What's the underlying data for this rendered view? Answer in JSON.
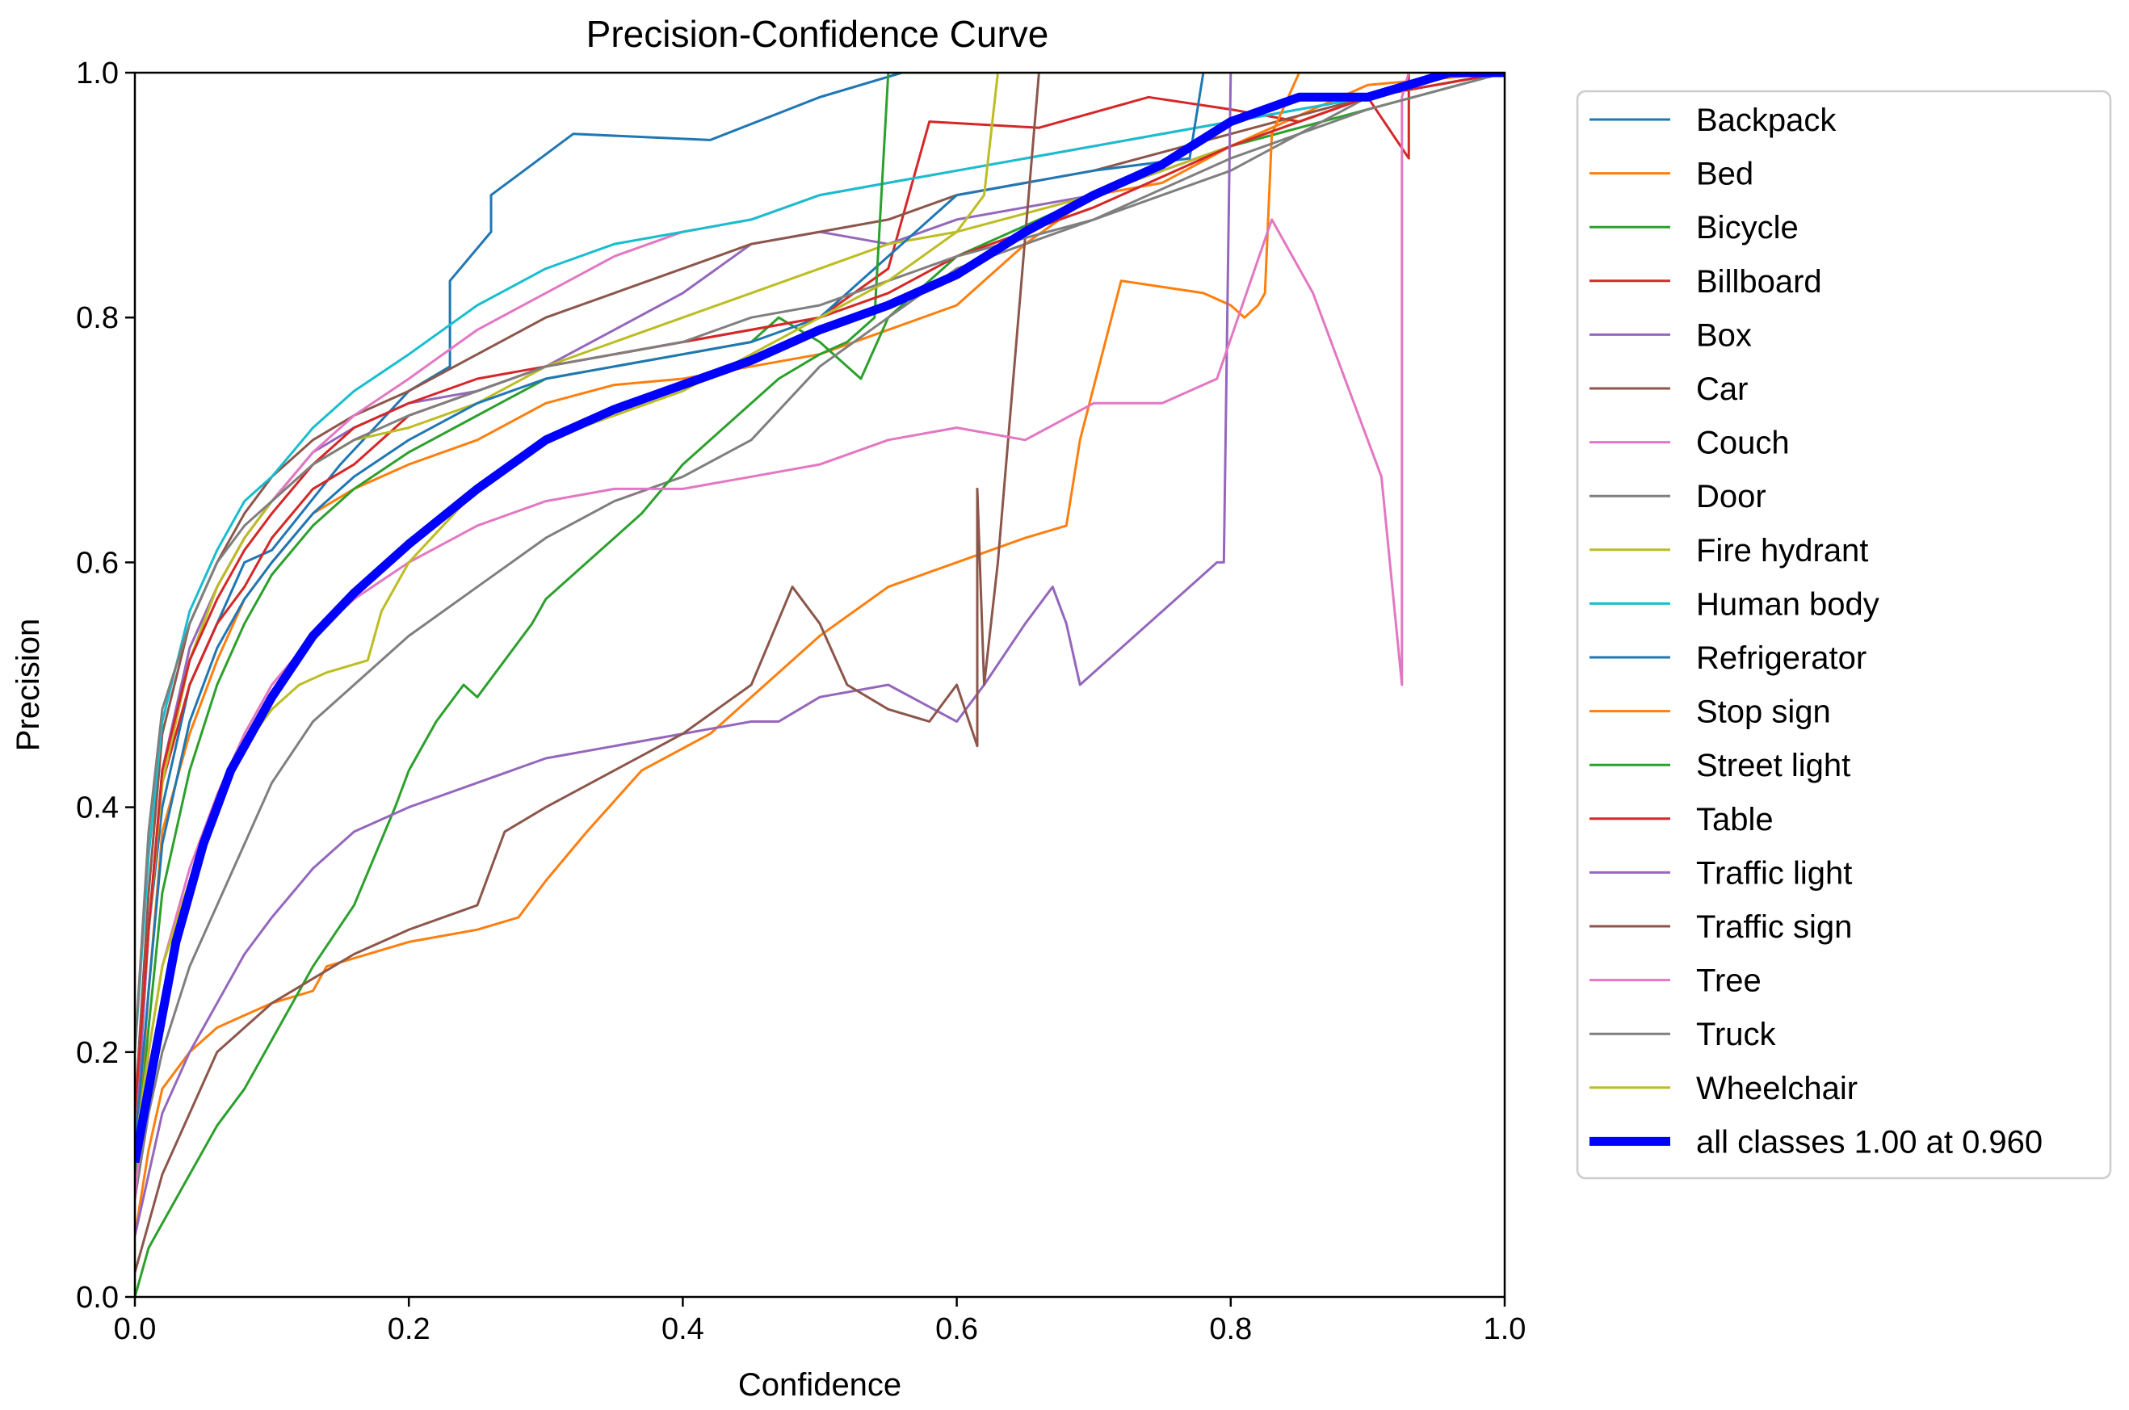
{
  "chart_data": {
    "type": "line",
    "title": "Precision-Confidence Curve",
    "xlabel": "Confidence",
    "ylabel": "Precision",
    "xlim": [
      0.0,
      1.0
    ],
    "ylim": [
      0.0,
      1.0
    ],
    "xticks": [
      "0.0",
      "0.2",
      "0.4",
      "0.6",
      "0.8",
      "1.0"
    ],
    "yticks": [
      "0.0",
      "0.2",
      "0.4",
      "0.6",
      "0.8",
      "1.0"
    ],
    "grid": false,
    "legend_position": "outside-right",
    "series": [
      {
        "name": "Backpack",
        "color": "#1f77b4",
        "x": [
          0,
          0.01,
          0.02,
          0.04,
          0.06,
          0.08,
          0.1,
          0.15,
          0.2,
          0.23,
          0.23,
          0.26,
          0.26,
          0.32,
          0.42,
          0.5,
          0.56,
          1.0
        ],
        "y": [
          0.12,
          0.3,
          0.4,
          0.5,
          0.55,
          0.6,
          0.61,
          0.68,
          0.74,
          0.76,
          0.83,
          0.87,
          0.9,
          0.95,
          0.945,
          0.98,
          1.0,
          1.0
        ]
      },
      {
        "name": "Bed",
        "color": "#ff7f0e",
        "x": [
          0,
          0.01,
          0.02,
          0.04,
          0.06,
          0.08,
          0.1,
          0.13,
          0.16,
          0.2,
          0.25,
          0.3,
          0.35,
          0.4,
          0.45,
          0.5,
          0.55,
          0.6,
          0.65,
          0.7,
          0.75,
          0.8,
          0.84,
          0.9,
          1.0
        ],
        "y": [
          0.1,
          0.25,
          0.38,
          0.46,
          0.52,
          0.57,
          0.6,
          0.64,
          0.66,
          0.68,
          0.7,
          0.73,
          0.745,
          0.75,
          0.76,
          0.77,
          0.79,
          0.81,
          0.86,
          0.9,
          0.91,
          0.94,
          0.96,
          0.99,
          1.0
        ]
      },
      {
        "name": "Bicycle",
        "color": "#2ca02c",
        "x": [
          0,
          0.01,
          0.02,
          0.04,
          0.06,
          0.08,
          0.1,
          0.13,
          0.16,
          0.2,
          0.25,
          0.3,
          0.35,
          0.4,
          0.45,
          0.47,
          0.5,
          0.53,
          0.55,
          0.6,
          0.7,
          0.8,
          0.9,
          1.0
        ],
        "y": [
          0.1,
          0.22,
          0.33,
          0.43,
          0.5,
          0.55,
          0.59,
          0.63,
          0.66,
          0.69,
          0.72,
          0.75,
          0.76,
          0.77,
          0.78,
          0.8,
          0.78,
          0.75,
          0.8,
          0.85,
          0.9,
          0.94,
          0.97,
          1.0
        ]
      },
      {
        "name": "Billboard",
        "color": "#d62728",
        "x": [
          0,
          0.01,
          0.02,
          0.04,
          0.06,
          0.08,
          0.1,
          0.13,
          0.16,
          0.2,
          0.25,
          0.3,
          0.35,
          0.4,
          0.5,
          0.55,
          0.58,
          0.66,
          0.74,
          0.8,
          0.85,
          0.9,
          0.93,
          0.93,
          1.0
        ],
        "y": [
          0.15,
          0.3,
          0.42,
          0.5,
          0.55,
          0.58,
          0.62,
          0.66,
          0.68,
          0.72,
          0.74,
          0.76,
          0.77,
          0.78,
          0.8,
          0.84,
          0.96,
          0.955,
          0.98,
          0.97,
          0.96,
          0.98,
          0.93,
          1.0,
          1.0
        ]
      },
      {
        "name": "Box",
        "color": "#9467bd",
        "x": [
          0,
          0.01,
          0.02,
          0.04,
          0.06,
          0.08,
          0.1,
          0.13,
          0.16,
          0.2,
          0.25,
          0.3,
          0.35,
          0.4,
          0.45,
          0.5,
          0.55,
          0.6,
          0.7,
          0.8,
          0.9,
          1.0
        ],
        "y": [
          0.12,
          0.3,
          0.43,
          0.53,
          0.58,
          0.62,
          0.65,
          0.69,
          0.71,
          0.73,
          0.74,
          0.76,
          0.79,
          0.82,
          0.86,
          0.87,
          0.86,
          0.88,
          0.9,
          0.94,
          0.98,
          1.0
        ]
      },
      {
        "name": "Car",
        "color": "#8c564b",
        "x": [
          0,
          0.01,
          0.02,
          0.04,
          0.06,
          0.08,
          0.1,
          0.13,
          0.16,
          0.2,
          0.25,
          0.3,
          0.35,
          0.4,
          0.45,
          0.5,
          0.55,
          0.6,
          0.7,
          0.8,
          0.9,
          1.0
        ],
        "y": [
          0.15,
          0.33,
          0.46,
          0.55,
          0.6,
          0.64,
          0.67,
          0.7,
          0.72,
          0.74,
          0.77,
          0.8,
          0.82,
          0.84,
          0.86,
          0.87,
          0.88,
          0.9,
          0.92,
          0.95,
          0.98,
          1.0
        ]
      },
      {
        "name": "Couch",
        "color": "#e377c2",
        "x": [
          0,
          0.01,
          0.02,
          0.04,
          0.06,
          0.08,
          0.1,
          0.13,
          0.16,
          0.2,
          0.25,
          0.3,
          0.35,
          0.4,
          0.45,
          0.5,
          0.55,
          0.6,
          0.7,
          0.8,
          0.9,
          1.0
        ],
        "y": [
          0.15,
          0.3,
          0.42,
          0.52,
          0.58,
          0.62,
          0.65,
          0.69,
          0.72,
          0.75,
          0.79,
          0.82,
          0.85,
          0.87,
          0.88,
          0.9,
          0.91,
          0.92,
          0.94,
          0.96,
          0.98,
          1.0
        ]
      },
      {
        "name": "Door",
        "color": "#7f7f7f",
        "x": [
          0,
          0.01,
          0.02,
          0.04,
          0.06,
          0.08,
          0.1,
          0.13,
          0.16,
          0.2,
          0.25,
          0.3,
          0.35,
          0.4,
          0.45,
          0.5,
          0.55,
          0.6,
          0.65,
          0.7,
          0.75,
          0.8,
          0.85,
          0.9,
          1.0
        ],
        "y": [
          0.08,
          0.15,
          0.2,
          0.27,
          0.32,
          0.37,
          0.42,
          0.47,
          0.5,
          0.54,
          0.58,
          0.62,
          0.65,
          0.67,
          0.7,
          0.76,
          0.8,
          0.84,
          0.86,
          0.88,
          0.9,
          0.92,
          0.95,
          0.98,
          1.0
        ]
      },
      {
        "name": "Fire hydrant",
        "color": "#bcbd22",
        "x": [
          0,
          0.01,
          0.02,
          0.04,
          0.06,
          0.08,
          0.1,
          0.13,
          0.16,
          0.2,
          0.25,
          0.3,
          0.35,
          0.4,
          0.45,
          0.5,
          0.55,
          0.6,
          0.7,
          0.8,
          0.9,
          1.0
        ],
        "y": [
          0.15,
          0.3,
          0.42,
          0.52,
          0.58,
          0.62,
          0.65,
          0.68,
          0.7,
          0.71,
          0.73,
          0.76,
          0.78,
          0.8,
          0.82,
          0.84,
          0.86,
          0.87,
          0.9,
          0.94,
          0.98,
          1.0
        ]
      },
      {
        "name": "Human body",
        "color": "#17becf",
        "x": [
          0,
          0.01,
          0.02,
          0.04,
          0.06,
          0.08,
          0.1,
          0.13,
          0.16,
          0.2,
          0.25,
          0.3,
          0.35,
          0.4,
          0.45,
          0.5,
          0.55,
          0.6,
          0.7,
          0.8,
          0.9,
          1.0
        ],
        "y": [
          0.2,
          0.36,
          0.47,
          0.56,
          0.61,
          0.65,
          0.67,
          0.71,
          0.74,
          0.77,
          0.81,
          0.84,
          0.86,
          0.87,
          0.88,
          0.9,
          0.91,
          0.92,
          0.94,
          0.96,
          0.98,
          1.0
        ]
      },
      {
        "name": "Refrigerator",
        "color": "#1f77b4",
        "x": [
          0,
          0.01,
          0.02,
          0.04,
          0.06,
          0.08,
          0.1,
          0.13,
          0.16,
          0.2,
          0.25,
          0.3,
          0.35,
          0.4,
          0.45,
          0.5,
          0.55,
          0.6,
          0.7,
          0.77,
          0.78,
          0.79,
          1.0
        ],
        "y": [
          0.12,
          0.25,
          0.37,
          0.47,
          0.53,
          0.57,
          0.6,
          0.64,
          0.67,
          0.7,
          0.73,
          0.75,
          0.76,
          0.77,
          0.78,
          0.8,
          0.85,
          0.9,
          0.92,
          0.93,
          1.0,
          1.0,
          1.0
        ]
      },
      {
        "name": "Stop sign",
        "color": "#ff7f0e",
        "x": [
          0,
          0.01,
          0.02,
          0.04,
          0.06,
          0.08,
          0.1,
          0.13,
          0.14,
          0.2,
          0.25,
          0.28,
          0.3,
          0.33,
          0.37,
          0.42,
          0.45,
          0.5,
          0.55,
          0.6,
          0.65,
          0.68,
          0.69,
          0.72,
          0.78,
          0.8,
          0.81,
          0.82,
          0.825,
          0.83,
          0.85,
          1.0
        ],
        "y": [
          0.05,
          0.12,
          0.17,
          0.2,
          0.22,
          0.23,
          0.24,
          0.25,
          0.27,
          0.29,
          0.3,
          0.31,
          0.34,
          0.38,
          0.43,
          0.46,
          0.49,
          0.54,
          0.58,
          0.6,
          0.62,
          0.63,
          0.7,
          0.83,
          0.82,
          0.81,
          0.8,
          0.81,
          0.82,
          0.95,
          1.0,
          1.0
        ]
      },
      {
        "name": "Street light",
        "color": "#2ca02c",
        "x": [
          0,
          0.01,
          0.02,
          0.04,
          0.06,
          0.08,
          0.1,
          0.13,
          0.16,
          0.19,
          0.2,
          0.22,
          0.24,
          0.25,
          0.27,
          0.29,
          0.3,
          0.33,
          0.37,
          0.4,
          0.44,
          0.47,
          0.5,
          0.52,
          0.54,
          0.55,
          0.56,
          0.6,
          0.7,
          0.8,
          0.9,
          1.0
        ],
        "y": [
          0.0,
          0.04,
          0.06,
          0.1,
          0.14,
          0.17,
          0.21,
          0.27,
          0.32,
          0.4,
          0.43,
          0.47,
          0.5,
          0.49,
          0.52,
          0.55,
          0.57,
          0.6,
          0.64,
          0.68,
          0.72,
          0.75,
          0.77,
          0.78,
          0.8,
          1.0,
          1.0,
          1.0,
          1.0,
          1.0,
          1.0,
          1.0
        ]
      },
      {
        "name": "Table",
        "color": "#d62728",
        "x": [
          0,
          0.01,
          0.02,
          0.04,
          0.06,
          0.08,
          0.1,
          0.13,
          0.16,
          0.2,
          0.25,
          0.3,
          0.35,
          0.4,
          0.45,
          0.5,
          0.55,
          0.6,
          0.7,
          0.8,
          0.9,
          1.0
        ],
        "y": [
          0.15,
          0.3,
          0.43,
          0.52,
          0.57,
          0.61,
          0.64,
          0.68,
          0.71,
          0.73,
          0.75,
          0.76,
          0.77,
          0.78,
          0.79,
          0.8,
          0.82,
          0.85,
          0.89,
          0.94,
          0.98,
          1.0
        ]
      },
      {
        "name": "Traffic light",
        "color": "#9467bd",
        "x": [
          0,
          0.01,
          0.02,
          0.04,
          0.06,
          0.08,
          0.1,
          0.13,
          0.16,
          0.2,
          0.25,
          0.3,
          0.35,
          0.4,
          0.45,
          0.47,
          0.5,
          0.55,
          0.6,
          0.62,
          0.65,
          0.67,
          0.68,
          0.69,
          0.79,
          0.795,
          0.8,
          0.85,
          1.0
        ],
        "y": [
          0.05,
          0.1,
          0.15,
          0.2,
          0.24,
          0.28,
          0.31,
          0.35,
          0.38,
          0.4,
          0.42,
          0.44,
          0.45,
          0.46,
          0.47,
          0.47,
          0.49,
          0.5,
          0.47,
          0.5,
          0.55,
          0.58,
          0.55,
          0.5,
          0.6,
          0.6,
          1.0,
          1.0,
          1.0
        ]
      },
      {
        "name": "Traffic sign",
        "color": "#8c564b",
        "x": [
          0,
          0.01,
          0.02,
          0.04,
          0.06,
          0.08,
          0.1,
          0.13,
          0.16,
          0.2,
          0.25,
          0.27,
          0.3,
          0.35,
          0.4,
          0.45,
          0.48,
          0.5,
          0.52,
          0.55,
          0.58,
          0.6,
          0.615,
          0.615,
          0.62,
          0.63,
          0.66,
          0.67,
          1.0
        ],
        "y": [
          0.02,
          0.06,
          0.1,
          0.15,
          0.2,
          0.22,
          0.24,
          0.26,
          0.28,
          0.3,
          0.32,
          0.38,
          0.4,
          0.43,
          0.46,
          0.5,
          0.58,
          0.55,
          0.5,
          0.48,
          0.47,
          0.5,
          0.45,
          0.66,
          0.5,
          0.6,
          1.0,
          1.0,
          1.0
        ]
      },
      {
        "name": "Tree",
        "color": "#e377c2",
        "x": [
          0,
          0.01,
          0.02,
          0.04,
          0.06,
          0.08,
          0.1,
          0.13,
          0.16,
          0.2,
          0.25,
          0.3,
          0.35,
          0.4,
          0.45,
          0.5,
          0.55,
          0.6,
          0.65,
          0.7,
          0.75,
          0.79,
          0.83,
          0.86,
          0.91,
          0.925,
          0.925,
          0.93,
          1.0
        ],
        "y": [
          0.08,
          0.2,
          0.27,
          0.35,
          0.41,
          0.46,
          0.5,
          0.54,
          0.57,
          0.6,
          0.63,
          0.65,
          0.66,
          0.66,
          0.67,
          0.68,
          0.7,
          0.71,
          0.7,
          0.73,
          0.73,
          0.75,
          0.88,
          0.82,
          0.67,
          0.5,
          0.98,
          1.0,
          1.0
        ]
      },
      {
        "name": "Truck",
        "color": "#7f7f7f",
        "x": [
          0,
          0.01,
          0.02,
          0.04,
          0.06,
          0.08,
          0.1,
          0.13,
          0.16,
          0.2,
          0.25,
          0.3,
          0.35,
          0.4,
          0.45,
          0.5,
          0.55,
          0.6,
          0.7,
          0.8,
          0.9,
          1.0
        ],
        "y": [
          0.2,
          0.38,
          0.48,
          0.55,
          0.6,
          0.63,
          0.65,
          0.68,
          0.7,
          0.72,
          0.74,
          0.76,
          0.77,
          0.78,
          0.8,
          0.81,
          0.83,
          0.85,
          0.88,
          0.93,
          0.97,
          1.0
        ]
      },
      {
        "name": "Wheelchair",
        "color": "#bcbd22",
        "x": [
          0,
          0.01,
          0.02,
          0.04,
          0.06,
          0.08,
          0.1,
          0.12,
          0.14,
          0.17,
          0.18,
          0.2,
          0.25,
          0.3,
          0.35,
          0.4,
          0.45,
          0.5,
          0.55,
          0.6,
          0.62,
          0.63,
          0.7,
          1.0
        ],
        "y": [
          0.12,
          0.2,
          0.27,
          0.34,
          0.4,
          0.45,
          0.48,
          0.5,
          0.51,
          0.52,
          0.56,
          0.6,
          0.66,
          0.7,
          0.72,
          0.74,
          0.77,
          0.8,
          0.83,
          0.87,
          0.9,
          1.0,
          1.0,
          1.0
        ]
      },
      {
        "name": "all classes 1.00 at 0.960",
        "color": "#0000ff",
        "bold": true,
        "x": [
          0,
          0.01,
          0.02,
          0.03,
          0.05,
          0.07,
          0.1,
          0.13,
          0.16,
          0.2,
          0.25,
          0.3,
          0.35,
          0.4,
          0.45,
          0.5,
          0.55,
          0.6,
          0.65,
          0.7,
          0.75,
          0.8,
          0.85,
          0.9,
          0.96,
          1.0
        ],
        "y": [
          0.11,
          0.17,
          0.23,
          0.29,
          0.37,
          0.43,
          0.49,
          0.54,
          0.575,
          0.615,
          0.66,
          0.7,
          0.725,
          0.745,
          0.765,
          0.79,
          0.81,
          0.835,
          0.87,
          0.9,
          0.925,
          0.96,
          0.98,
          0.98,
          1.0,
          1.0
        ]
      }
    ]
  }
}
